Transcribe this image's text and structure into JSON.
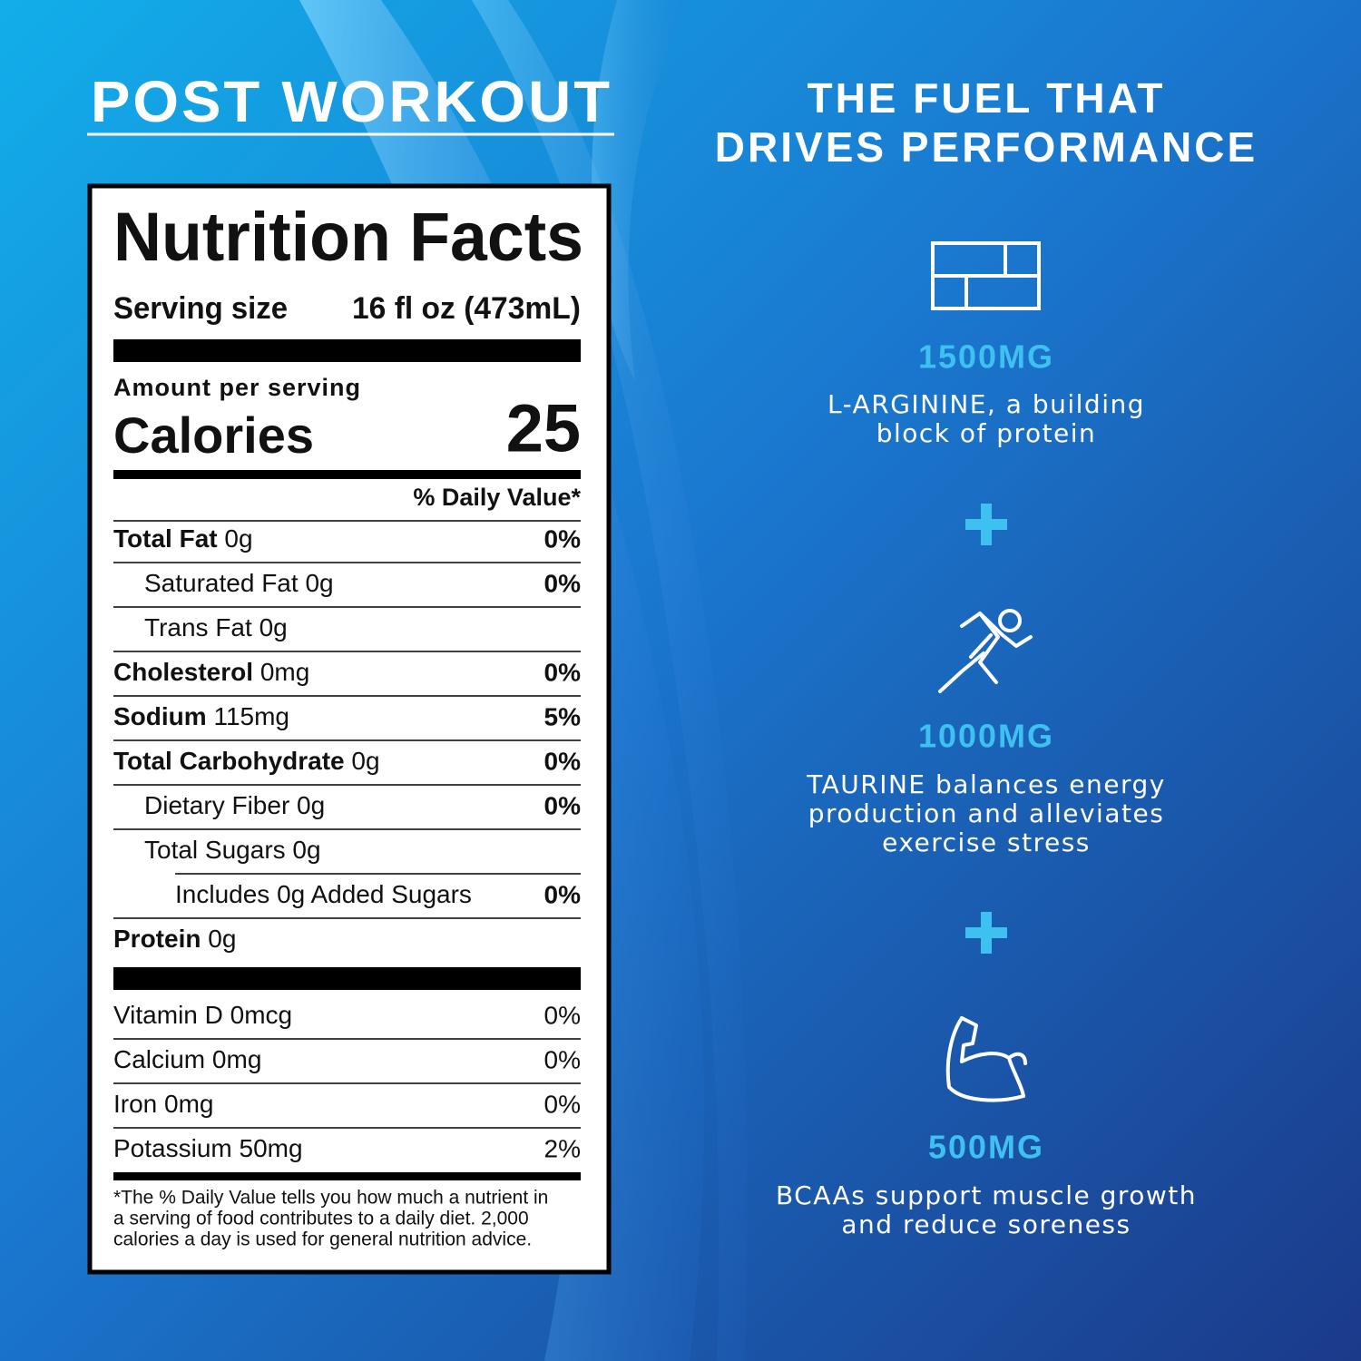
{
  "left": {
    "title": "POST WORKOUT"
  },
  "label": {
    "title": "Nutrition Facts",
    "serving_size": {
      "label": "Serving size",
      "value": "16 fl oz (473mL)"
    },
    "amount_per_serving": "Amount per serving",
    "calories": {
      "label": "Calories",
      "value": 25
    },
    "daily_value_header": "% Daily Value*",
    "nutrients": [
      {
        "name": "Total Fat",
        "amount": "0g",
        "dv": "0%",
        "sub": [
          {
            "name": "Saturated Fat",
            "amount": "0g",
            "dv": "0%"
          },
          {
            "name": "Trans Fat",
            "amount": "0g"
          }
        ]
      },
      {
        "name": "Cholesterol",
        "amount": "0mg",
        "dv": "0%"
      },
      {
        "name": "Sodium",
        "amount": "115mg",
        "dv": "5%"
      },
      {
        "name": "Total Carbohydrate",
        "amount": "0g",
        "dv": "0%",
        "sub": [
          {
            "name": "Dietary Fiber",
            "amount": "0g",
            "dv": "0%"
          },
          {
            "name": "Total Sugars",
            "amount": "0g",
            "sub": [
              {
                "name": "Includes 0g Added Sugars",
                "dv": "0%"
              }
            ]
          }
        ]
      },
      {
        "name": "Protein",
        "amount": "0g"
      }
    ],
    "vitamins": [
      {
        "name": "Vitamin D",
        "amount": "0mcg",
        "dv": "0%"
      },
      {
        "name": "Calcium",
        "amount": "0mg",
        "dv": "0%"
      },
      {
        "name": "Iron",
        "amount": "0mg",
        "dv": "0%"
      },
      {
        "name": "Potassium",
        "amount": "50mg",
        "dv": "2%"
      }
    ],
    "footnote": [
      "*The % Daily Value tells you how much a nutrient in",
      "a serving of food contributes to a daily diet. 2,000",
      "calories a day is used for general nutrition advice."
    ]
  },
  "right": {
    "title": [
      "THE FUEL THAT",
      "DRIVES PERFORMANCE"
    ],
    "features": [
      {
        "amount": "1500MG",
        "text": [
          "L-ARGININE, a building",
          "block of protein"
        ]
      },
      {
        "amount": "1000MG",
        "text": [
          "TAURINE balances energy",
          "production and alleviates",
          "exercise stress"
        ]
      },
      {
        "amount": "500MG",
        "text": [
          "BCAAs support muscle growth",
          "and reduce soreness"
        ]
      }
    ]
  }
}
